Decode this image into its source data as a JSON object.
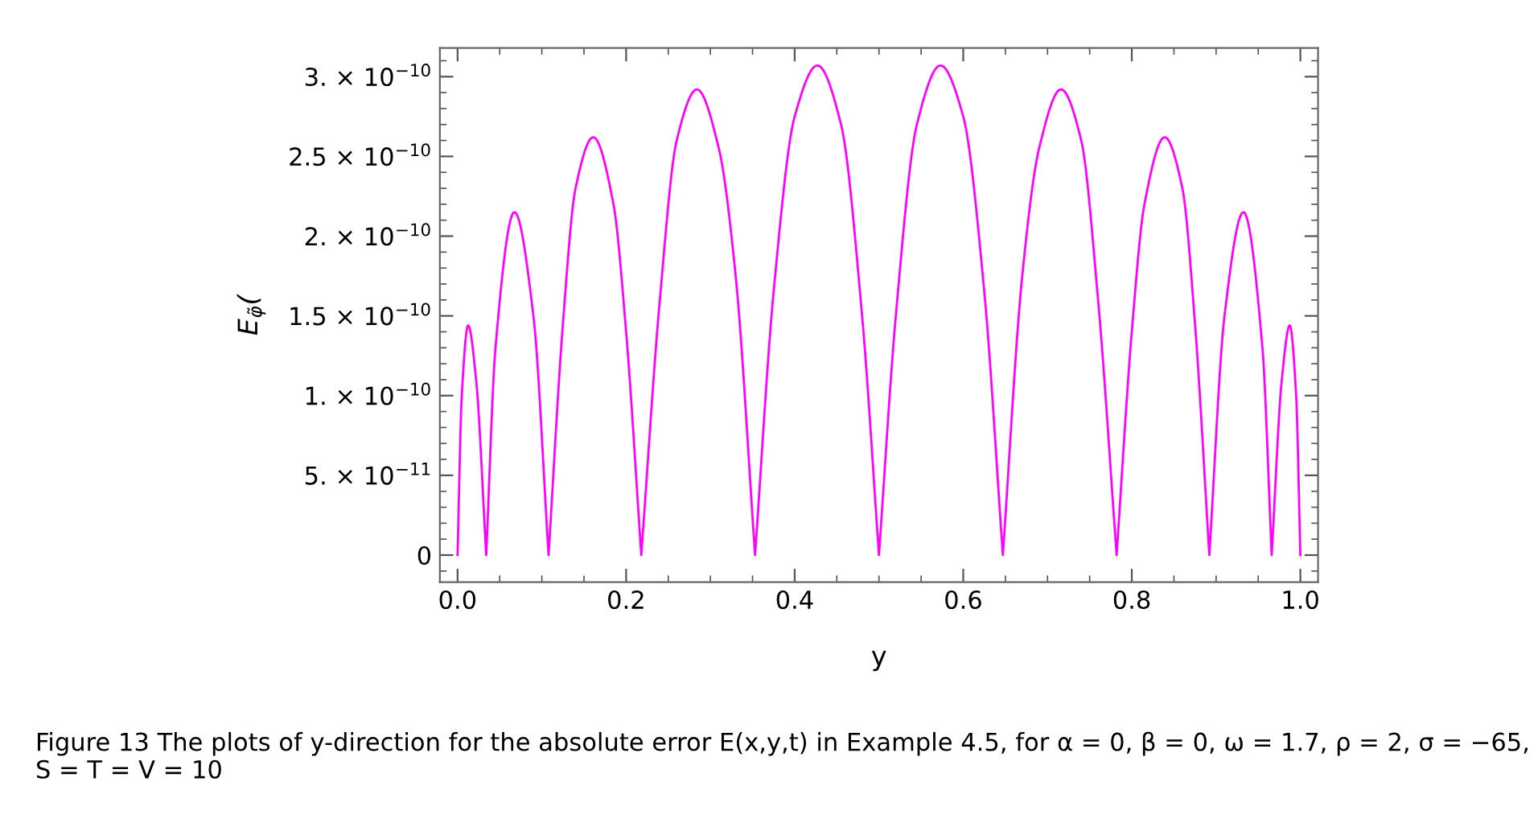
{
  "chart_data": {
    "type": "line",
    "xlabel": "y",
    "ylabel": "E$_{φ̃}$(",
    "x": [
      0,
      0.005,
      0.0126,
      0.022,
      0.034,
      0.045,
      0.0675,
      0.09,
      0.108,
      0.125,
      0.14,
      0.161,
      0.185,
      0.2,
      0.218,
      0.24,
      0.26,
      0.284,
      0.31,
      0.33,
      0.353,
      0.375,
      0.4,
      0.427,
      0.455,
      0.48,
      0.5,
      0.52,
      0.545,
      0.573,
      0.6,
      0.625,
      0.647,
      0.67,
      0.69,
      0.716,
      0.74,
      0.76,
      0.782,
      0.8,
      0.815,
      0.839,
      0.86,
      0.875,
      0.892,
      0.91,
      0.9325,
      0.955,
      0.966,
      0.978,
      0.9874,
      0.995,
      1.0
    ],
    "series": [
      {
        "color": "#ff00ff",
        "values": [
          0,
          1e-10,
          1.44e-10,
          1.1e-10,
          0,
          1.3e-10,
          2.15e-10,
          1.5e-10,
          0,
          1.45e-10,
          2.3e-10,
          2.62e-10,
          2.2e-10,
          1.4e-10,
          0,
          1.6e-10,
          2.6e-10,
          2.92e-10,
          2.55e-10,
          1.75e-10,
          0,
          1.65e-10,
          2.75e-10,
          3.07e-10,
          2.7e-10,
          1.5e-10,
          0,
          1.5e-10,
          2.7e-10,
          3.07e-10,
          2.75e-10,
          1.65e-10,
          0,
          1.75e-10,
          2.55e-10,
          2.92e-10,
          2.6e-10,
          1.6e-10,
          0,
          1.4e-10,
          2.2e-10,
          2.62e-10,
          2.3e-10,
          1.45e-10,
          0,
          1.5e-10,
          2.15e-10,
          1.3e-10,
          0,
          1.1e-10,
          1.44e-10,
          1e-10,
          0
        ]
      }
    ],
    "xlim": [
      -0.021,
      1.021
    ],
    "xticks": [
      {
        "value": 0,
        "label": "0.0"
      },
      0.2,
      0.4,
      0.6,
      0.8,
      {
        "value": 1,
        "label": "1.0"
      }
    ],
    "ylim": [
      -1.7e-11,
      3.18e-10
    ],
    "yticks": [
      0,
      {
        "value": 5e-11,
        "label": "5. × 10$^{−11}$"
      },
      {
        "value": 1e-10,
        "label": "1. × 10$^{−10}$"
      },
      {
        "value": 1.5e-10,
        "label": "1.5 × 10$^{−10}$"
      },
      {
        "value": 2e-10,
        "label": "2. × 10$^{−10}$"
      },
      {
        "value": 2.5e-10,
        "label": "2.5 × 10$^{−10}$"
      },
      {
        "value": 3e-10,
        "label": "3. × 10$^{−10}$"
      }
    ],
    "grid": false,
    "legend": false,
    "marker": "none",
    "line_style": "solid",
    "annotations": [
      "Figure 13 The plots of y-direction for the absolute error E(x,y,t) in Example 4.5, for α = 0, β = 0, ω = 1.7, ρ = 2, σ = −65, S = T = V = 10"
    ]
  }
}
